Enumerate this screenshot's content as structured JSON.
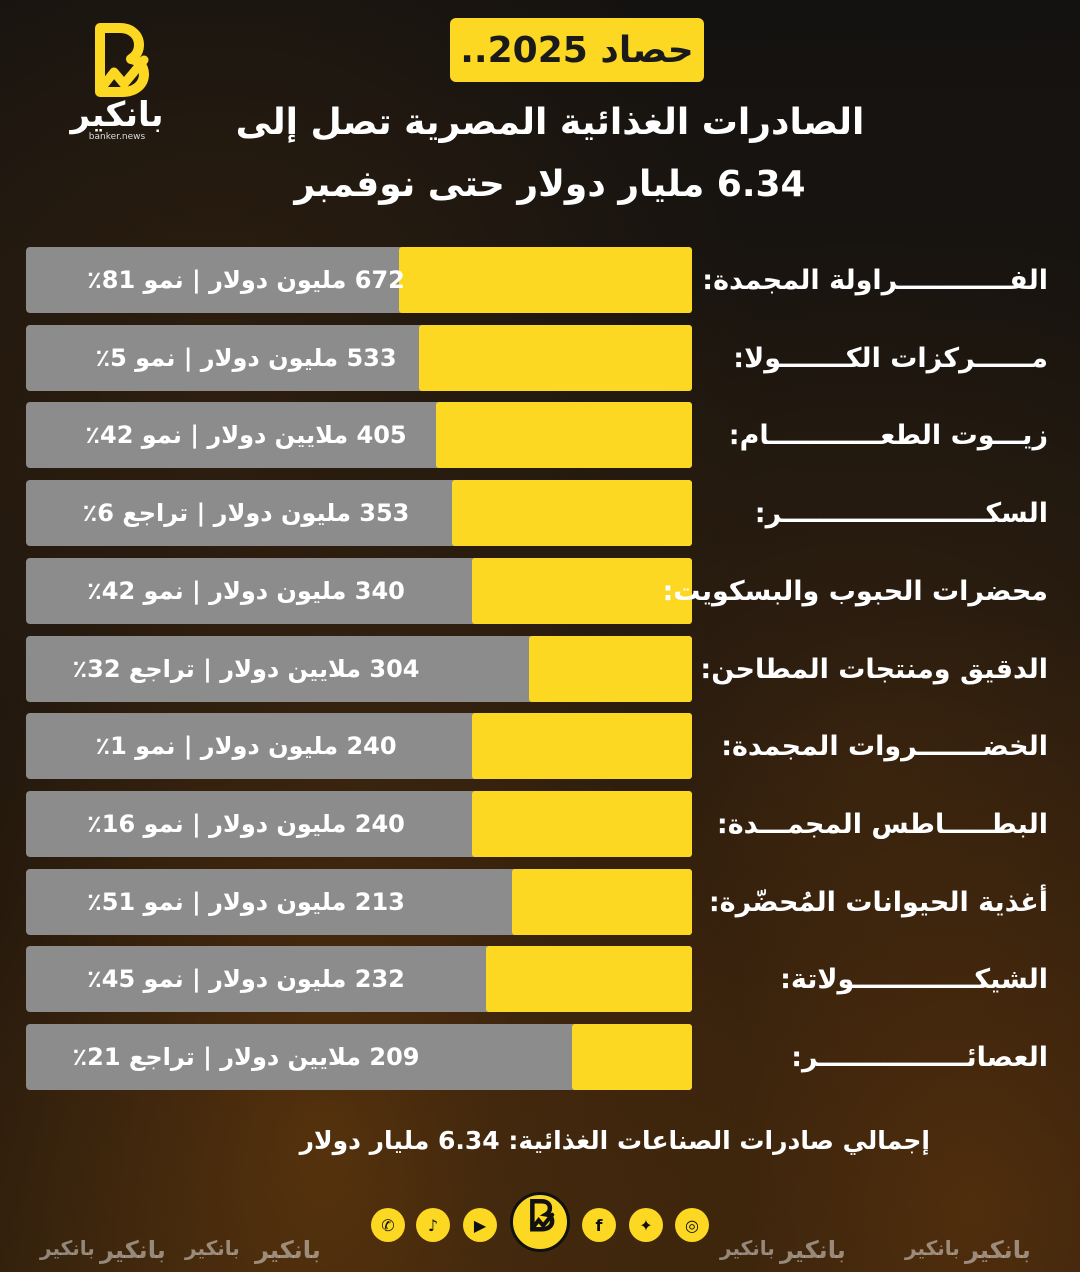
{
  "header": {
    "badge": "حصاد 2025..",
    "title_line1": "الصادرات الغذائية المصرية تصل إلى",
    "title_line2": "6.34 مليار دولار حتى نوفمبر"
  },
  "brand": {
    "name": "بانكير",
    "url": "banker.news",
    "accent": "#fdd823"
  },
  "chart_data": {
    "type": "bar",
    "orientation": "horizontal",
    "unit": "مليون دولار",
    "categories": [
      "الفــــــــــــراولة المجمدة:",
      "مــــــركزات الكـــــــولا:",
      "زيـــوت الطعــــــــــــام:",
      "السكــــــــــــــــــــــر:",
      "محضرات الحبوب والبسكويت:",
      "الدقيق ومنتجات المطاحن:",
      "الخضـــــــروات المجمدة:",
      "البطـــــاطس المجمـــدة:",
      "أغذية الحيوانات المُحضّرة:",
      "الشيكـــــــــــــولاتة:",
      "العصائــــــــــــــــر:"
    ],
    "values": [
      672,
      533,
      405,
      353,
      340,
      304,
      240,
      240,
      213,
      232,
      209
    ],
    "value_labels": [
      "672 مليون دولار | نمو 81٪",
      "533 مليون دولار | نمو 5٪",
      "405 ملايين دولار | نمو 42٪",
      "353 مليون دولار | تراجع 6٪",
      "340 مليون دولار | نمو 42٪",
      "304 ملايين دولار | تراجع 32٪",
      "240 مليون دولار | نمو 1٪",
      "240 مليون دولار | نمو 16٪",
      "213 مليون دولار | نمو 51٪",
      "232 مليون دولار | نمو 45٪",
      "209 ملايين دولار | تراجع 21٪"
    ],
    "fill_fraction": [
      0.44,
      0.41,
      0.385,
      0.36,
      0.33,
      0.245,
      0.33,
      0.33,
      0.27,
      0.31,
      0.18
    ],
    "bar_color": "#fdd823",
    "track_color": "#8c8c8c"
  },
  "footer": {
    "total": "إجمالي صادرات الصناعات الغذائية: 6.34 مليار دولار",
    "social_icons": [
      "whatsapp-icon",
      "tiktok-icon",
      "youtube-icon",
      "brand-logo-icon",
      "facebook-icon",
      "twitter-icon",
      "instagram-icon"
    ],
    "watermark": "بانكير"
  }
}
